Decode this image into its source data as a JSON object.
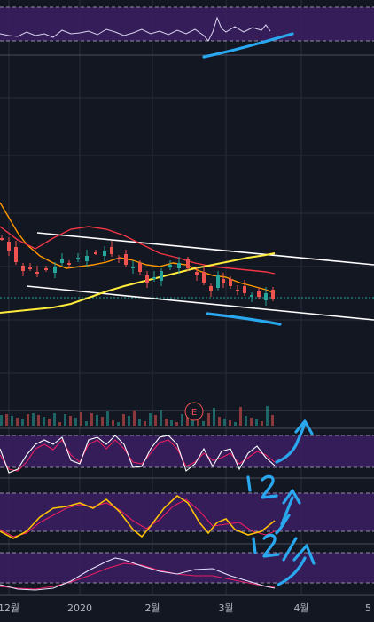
{
  "chart_data": {
    "type": "candlestick",
    "title": "",
    "x_tick_labels": [
      "12월",
      "2020",
      "2월",
      "3월",
      "4월",
      "5"
    ],
    "earnings_marker": "E",
    "colors": {
      "background": "#131722",
      "grid": "#2a2e39",
      "up": "#26a69a",
      "down": "#ef5350",
      "ma_short": "#ff9800",
      "ma_mid": "#f23645",
      "ma_long": "#ffeb3b",
      "last_price_line": "#26a69a",
      "oscillator_band": "#3c1f63",
      "oscillator_line_1": "#ffffff",
      "oscillator_line_2": "#e91e63",
      "oscillator_line_3": "#ffc107",
      "drawn_trendline": "#ffffff",
      "hand_annotation": "#29a8ef"
    },
    "hand_annotations": [
      "1",
      "2",
      "1",
      "2"
    ],
    "panels": [
      "price",
      "volume",
      "stochastic",
      "macd-style",
      "rsi-style"
    ]
  }
}
